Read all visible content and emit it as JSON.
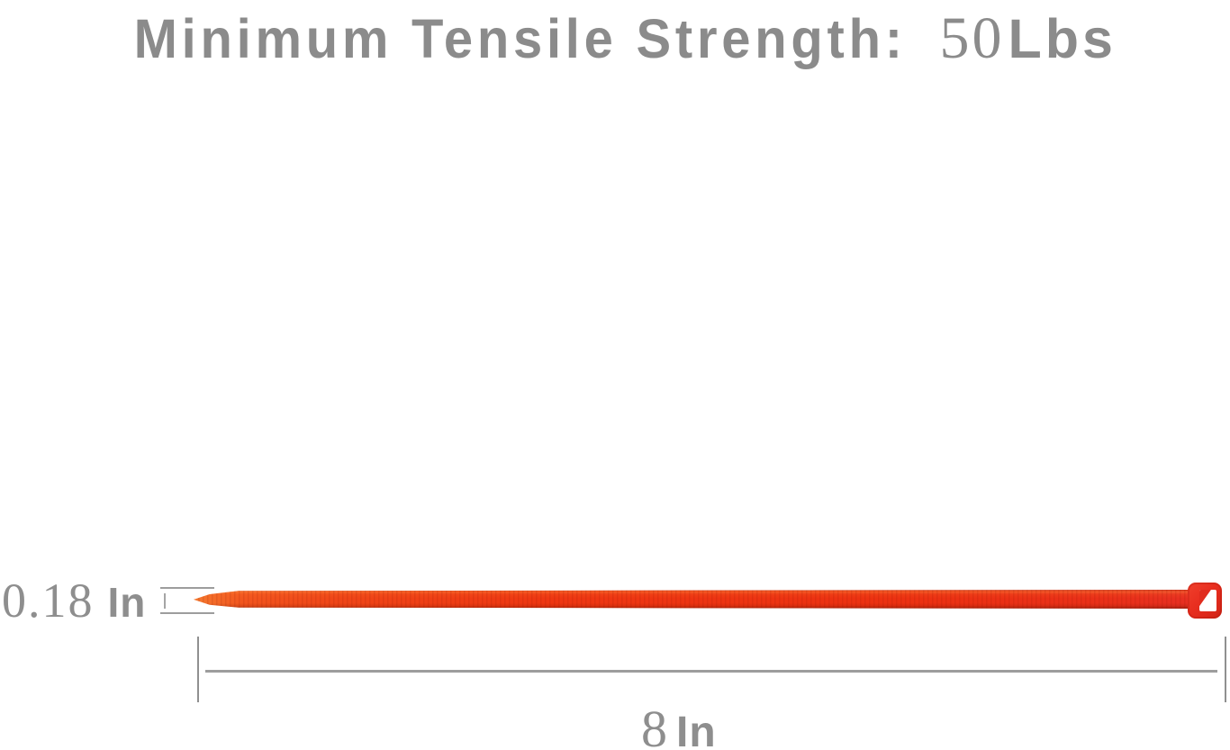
{
  "title": {
    "prefix": "Minimum Tensile Strength:",
    "value": "50",
    "unit": "Lbs",
    "color": "#8b8b8b"
  },
  "dimensions": {
    "width": {
      "value": "0.18",
      "unit": "In"
    },
    "length": {
      "value": "8",
      "unit": "In"
    },
    "line_color": "#9d9d9d",
    "text_color": "#8e8e8e"
  },
  "cable_tie": {
    "strap_tip_color": "#f2551e",
    "strap_body_color": "#ec3111",
    "strap_shadow_color": "#bb2f08",
    "head_color": "#e62d1f",
    "head_slot_color": "#ffffff"
  }
}
